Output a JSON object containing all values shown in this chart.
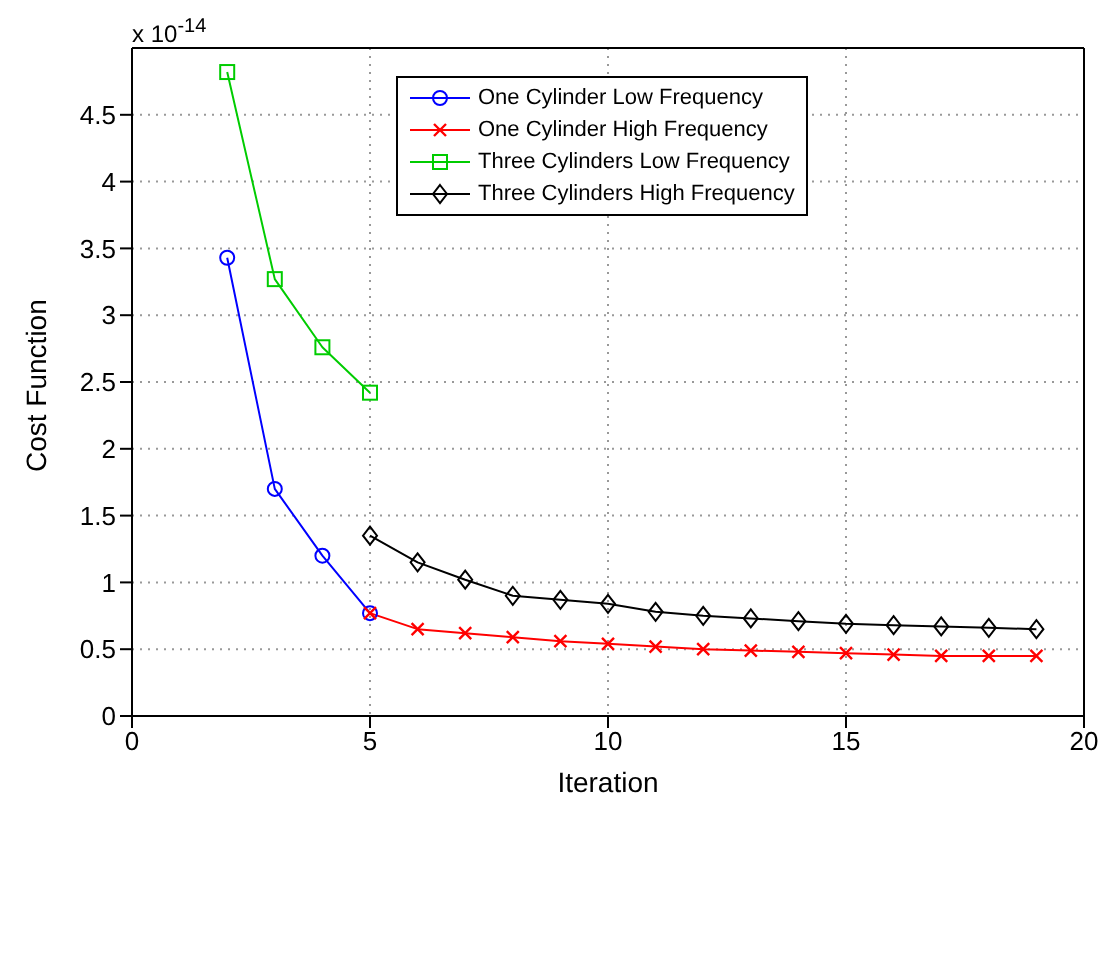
{
  "chart_data": {
    "type": "line",
    "xlabel": "Iteration",
    "ylabel": "Cost Function",
    "annotations": [
      "x 10$^{-14}$"
    ],
    "xlim": [
      0,
      20
    ],
    "xticks": [
      0,
      5,
      10,
      15,
      20
    ],
    "ylim": [
      0,
      5
    ],
    "yticks": [
      0,
      0.5,
      1,
      1.5,
      2,
      2.5,
      3,
      3.5,
      4,
      4.5
    ],
    "grid": true,
    "legend": "top",
    "series": [
      {
        "name": "One Cylinder Low Frequency",
        "color": "#0000ff",
        "marker": "circle",
        "x": [
          2,
          3,
          4,
          5
        ],
        "values": [
          3.43,
          1.7,
          1.2,
          0.77
        ]
      },
      {
        "name": "One Cylinder High Frequency",
        "color": "#ff0000",
        "marker": "cross",
        "x": [
          5,
          6,
          7,
          8,
          9,
          10,
          11,
          12,
          13,
          14,
          15,
          16,
          17,
          18,
          19
        ],
        "values": [
          0.77,
          0.65,
          0.62,
          0.59,
          0.56,
          0.54,
          0.52,
          0.5,
          0.49,
          0.48,
          0.47,
          0.46,
          0.45,
          0.45,
          0.45
        ]
      },
      {
        "name": "Three Cylinders Low Frequency",
        "color": "#00cc00",
        "marker": "square",
        "x": [
          2,
          3,
          4,
          5
        ],
        "values": [
          4.82,
          3.27,
          2.76,
          2.42
        ]
      },
      {
        "name": "Three Cylinders High Frequency",
        "color": "#000000",
        "marker": "diamond",
        "x": [
          5,
          6,
          7,
          8,
          9,
          10,
          11,
          12,
          13,
          14,
          15,
          16,
          17,
          18,
          19
        ],
        "values": [
          1.35,
          1.15,
          1.02,
          0.9,
          0.87,
          0.84,
          0.78,
          0.75,
          0.73,
          0.71,
          0.69,
          0.68,
          0.67,
          0.66,
          0.65
        ]
      }
    ]
  }
}
